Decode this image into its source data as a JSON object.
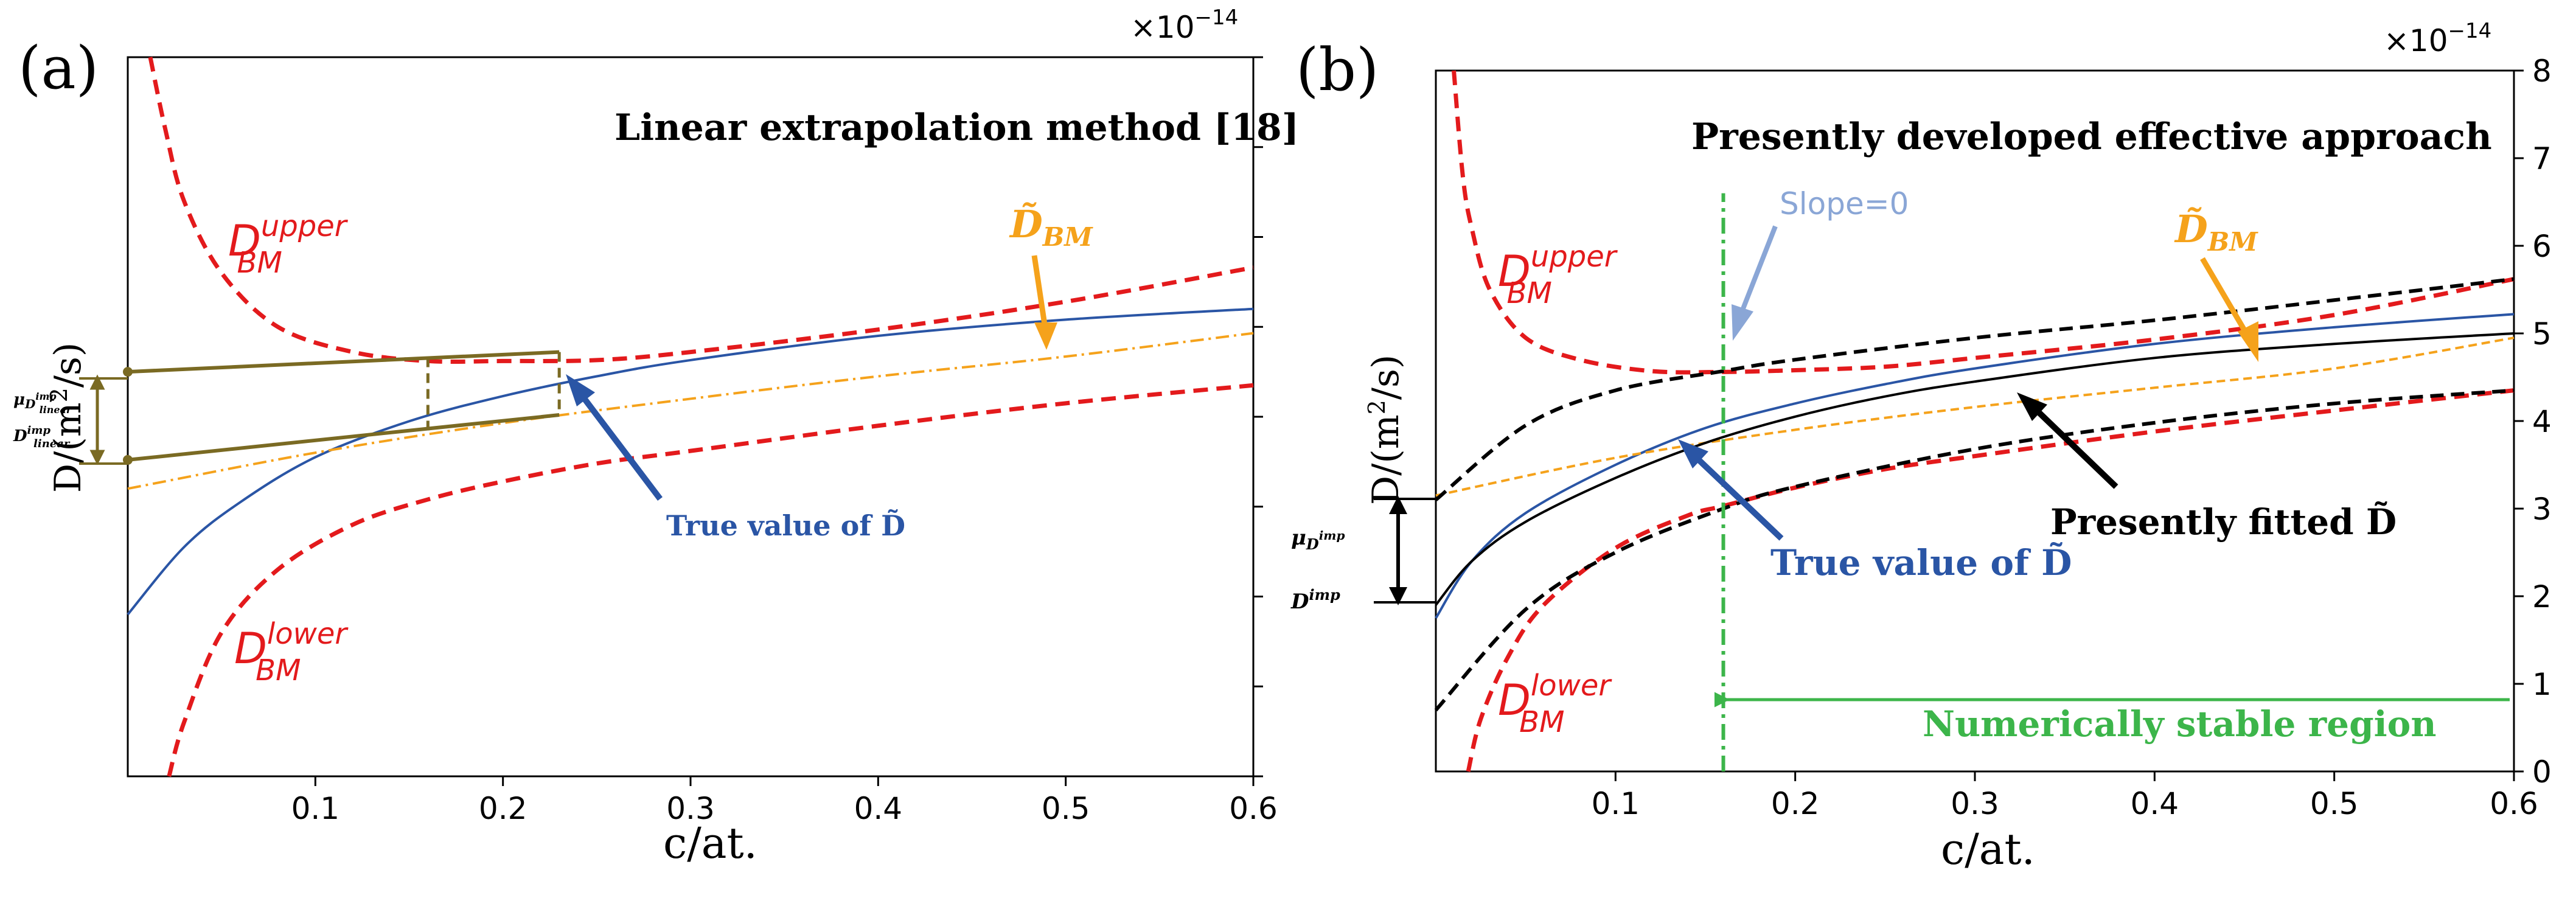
{
  "figure": {
    "panel_a": {
      "panel_label": "(a)",
      "exponent_label": "×10",
      "exponent_power": "−14",
      "method_title": "Linear extrapolation method [18]",
      "ylabel_prefix": "D/(m",
      "ylabel_sup": "2",
      "ylabel_suffix": "/s)",
      "xlabel": "c/at.",
      "xticks": [
        "0.1",
        "0.2",
        "0.3",
        "0.4",
        "0.5",
        "0.6"
      ],
      "label_upper_base": "D",
      "label_upper_sup": "upper",
      "label_upper_sub": "BM",
      "label_lower_base": "D",
      "label_lower_sup": "lower",
      "label_lower_sub": "BM",
      "label_dbm_base": "D̃",
      "label_dbm_sub": "BM",
      "label_true": "True value of D̃",
      "label_mu_prefix": "μ",
      "label_mu_sub": "D",
      "label_mu_sub2": "linear",
      "label_mu_sup2": "imp",
      "label_dimp_base": "D",
      "label_dimp_sup": "imp",
      "label_dimp_sub": "linear"
    },
    "panel_b": {
      "panel_label": "(b)",
      "exponent_label": "×10",
      "exponent_power": "−14",
      "method_title": "Presently developed effective approach",
      "ylabel_prefix": "D/(m",
      "ylabel_sup": "2",
      "ylabel_suffix": "/s)",
      "xlabel": "c/at.",
      "xticks": [
        "0.1",
        "0.2",
        "0.3",
        "0.4",
        "0.5",
        "0.6"
      ],
      "yticks": [
        "0",
        "1",
        "2",
        "3",
        "4",
        "5",
        "6",
        "7",
        "8"
      ],
      "label_upper_base": "D",
      "label_upper_sup": "upper",
      "label_upper_sub": "BM",
      "label_lower_base": "D",
      "label_lower_sup": "lower",
      "label_lower_sub": "BM",
      "label_dbm_base": "D̃",
      "label_dbm_sub": "BM",
      "label_slope": "Slope=0",
      "label_true": "True value of D̃",
      "label_fitted": "Presently fitted D̃",
      "label_stable": "Numerically stable region",
      "label_mu_prefix": "μ",
      "label_mu_sub": "D",
      "label_mu_sup2": "imp",
      "label_dimp_base": "D",
      "label_dimp_sup": "imp"
    }
  },
  "colors": {
    "red": "#e31a1c",
    "blue": "#2a55a5",
    "orange": "#f5a21b",
    "olive": "#7a6a23",
    "green": "#3cb54a",
    "black": "#000000",
    "slope_blue": "#8aa6d6"
  },
  "chart_data": [
    {
      "type": "line",
      "title": "Linear extrapolation method [18]",
      "xlabel": "c/at.",
      "ylabel": "D/(m2/s)",
      "xlim": [
        0.0,
        0.6
      ],
      "ylim": [
        0,
        8
      ],
      "y_scale": "×10^-14",
      "xticks": [
        0.1,
        0.2,
        0.3,
        0.4,
        0.5,
        0.6
      ],
      "series": [
        {
          "name": "D_BM^upper",
          "style": "red dashed",
          "x": [
            0.012,
            0.02,
            0.03,
            0.05,
            0.08,
            0.12,
            0.16,
            0.2,
            0.25,
            0.3,
            0.4,
            0.5,
            0.6
          ],
          "y": [
            8.0,
            7.2,
            6.4,
            5.6,
            5.0,
            4.72,
            4.62,
            4.62,
            4.63,
            4.72,
            4.97,
            5.28,
            5.66
          ]
        },
        {
          "name": "D_BM^lower",
          "style": "red dashed",
          "x": [
            0.022,
            0.03,
            0.05,
            0.08,
            0.12,
            0.16,
            0.2,
            0.25,
            0.3,
            0.4,
            0.5,
            0.6
          ],
          "y": [
            0.0,
            0.6,
            1.6,
            2.3,
            2.8,
            3.08,
            3.28,
            3.48,
            3.62,
            3.9,
            4.15,
            4.35
          ]
        },
        {
          "name": "True value of D",
          "style": "blue solid",
          "x": [
            0.0,
            0.03,
            0.06,
            0.1,
            0.15,
            0.2,
            0.25,
            0.3,
            0.4,
            0.5,
            0.6
          ],
          "y": [
            1.8,
            2.55,
            3.05,
            3.55,
            3.95,
            4.23,
            4.45,
            4.63,
            4.9,
            5.08,
            5.2
          ]
        },
        {
          "name": "D_BM",
          "style": "orange dash-dot",
          "x": [
            0.0,
            0.1,
            0.2,
            0.3,
            0.4,
            0.5,
            0.6
          ],
          "y": [
            3.2,
            3.6,
            3.93,
            4.2,
            4.45,
            4.67,
            4.93
          ]
        },
        {
          "name": "upper linear fit",
          "style": "olive solid",
          "x": [
            0.0,
            0.23
          ],
          "y": [
            4.5,
            4.72
          ]
        },
        {
          "name": "lower linear fit",
          "style": "olive solid",
          "x": [
            0.0,
            0.23
          ],
          "y": [
            3.52,
            4.02
          ]
        }
      ],
      "annotations": [
        "μ_D_linear^imp",
        "D_linear^imp",
        "True value of D̃",
        "D̃_BM"
      ]
    },
    {
      "type": "line",
      "title": "Presently developed effective approach",
      "xlabel": "c/at.",
      "ylabel": "D/(m2/s)",
      "xlim": [
        0.0,
        0.6
      ],
      "ylim": [
        0,
        8
      ],
      "y_scale": "×10^-14",
      "xticks": [
        0.1,
        0.2,
        0.3,
        0.4,
        0.5,
        0.6
      ],
      "yticks": [
        0,
        1,
        2,
        3,
        4,
        5,
        6,
        7,
        8
      ],
      "series": [
        {
          "name": "D_BM^upper",
          "style": "red dashed",
          "x": [
            0.01,
            0.015,
            0.02,
            0.03,
            0.05,
            0.08,
            0.12,
            0.16,
            0.2,
            0.25,
            0.3,
            0.4,
            0.5,
            0.6
          ],
          "y": [
            8.0,
            6.8,
            6.2,
            5.5,
            4.95,
            4.7,
            4.57,
            4.56,
            4.58,
            4.62,
            4.72,
            4.93,
            5.21,
            5.62
          ]
        },
        {
          "name": "D_BM^lower",
          "style": "red dashed",
          "x": [
            0.018,
            0.025,
            0.04,
            0.06,
            0.1,
            0.14,
            0.16,
            0.2,
            0.25,
            0.3,
            0.4,
            0.5,
            0.6
          ],
          "y": [
            0.0,
            0.6,
            1.3,
            1.9,
            2.55,
            2.92,
            3.03,
            3.24,
            3.45,
            3.6,
            3.88,
            4.12,
            4.35
          ]
        },
        {
          "name": "True value of D",
          "style": "blue solid",
          "x": [
            0.0,
            0.02,
            0.05,
            0.1,
            0.15,
            0.2,
            0.25,
            0.3,
            0.4,
            0.5,
            0.6
          ],
          "y": [
            1.75,
            2.4,
            2.95,
            3.5,
            3.92,
            4.2,
            4.42,
            4.6,
            4.88,
            5.07,
            5.22
          ]
        },
        {
          "name": "D_BM",
          "style": "orange dashed",
          "x": [
            0.0,
            0.1,
            0.2,
            0.3,
            0.4,
            0.5,
            0.6
          ],
          "y": [
            3.15,
            3.58,
            3.9,
            4.16,
            4.38,
            4.6,
            4.95
          ]
        },
        {
          "name": "Presently fitted D",
          "style": "black solid",
          "x": [
            0.0,
            0.02,
            0.05,
            0.1,
            0.15,
            0.2,
            0.25,
            0.3,
            0.4,
            0.5,
            0.6
          ],
          "y": [
            1.9,
            2.4,
            2.85,
            3.35,
            3.75,
            4.05,
            4.28,
            4.45,
            4.72,
            4.88,
            5.0
          ]
        },
        {
          "name": "fitted upper bound",
          "style": "black dashed",
          "x": [
            0.0,
            0.05,
            0.1,
            0.16,
            0.2,
            0.3,
            0.4,
            0.5,
            0.6
          ],
          "y": [
            3.1,
            3.95,
            4.35,
            4.57,
            4.7,
            4.95,
            5.15,
            5.38,
            5.62
          ]
        },
        {
          "name": "fitted lower bound",
          "style": "black dashed",
          "x": [
            0.0,
            0.05,
            0.1,
            0.16,
            0.2,
            0.3,
            0.4,
            0.5,
            0.6
          ],
          "y": [
            0.7,
            1.85,
            2.5,
            3.0,
            3.25,
            3.68,
            3.98,
            4.2,
            4.35
          ]
        },
        {
          "name": "Slope=0 line",
          "style": "green dash-dot vertical",
          "x": [
            0.16,
            0.16
          ],
          "y": [
            0,
            6.6
          ]
        }
      ],
      "annotations": [
        "Slope=0",
        "True value of D̃",
        "Presently fitted D̃",
        "Numerically stable region",
        "μ_D^imp",
        "D^imp",
        "D̃_BM"
      ]
    }
  ]
}
